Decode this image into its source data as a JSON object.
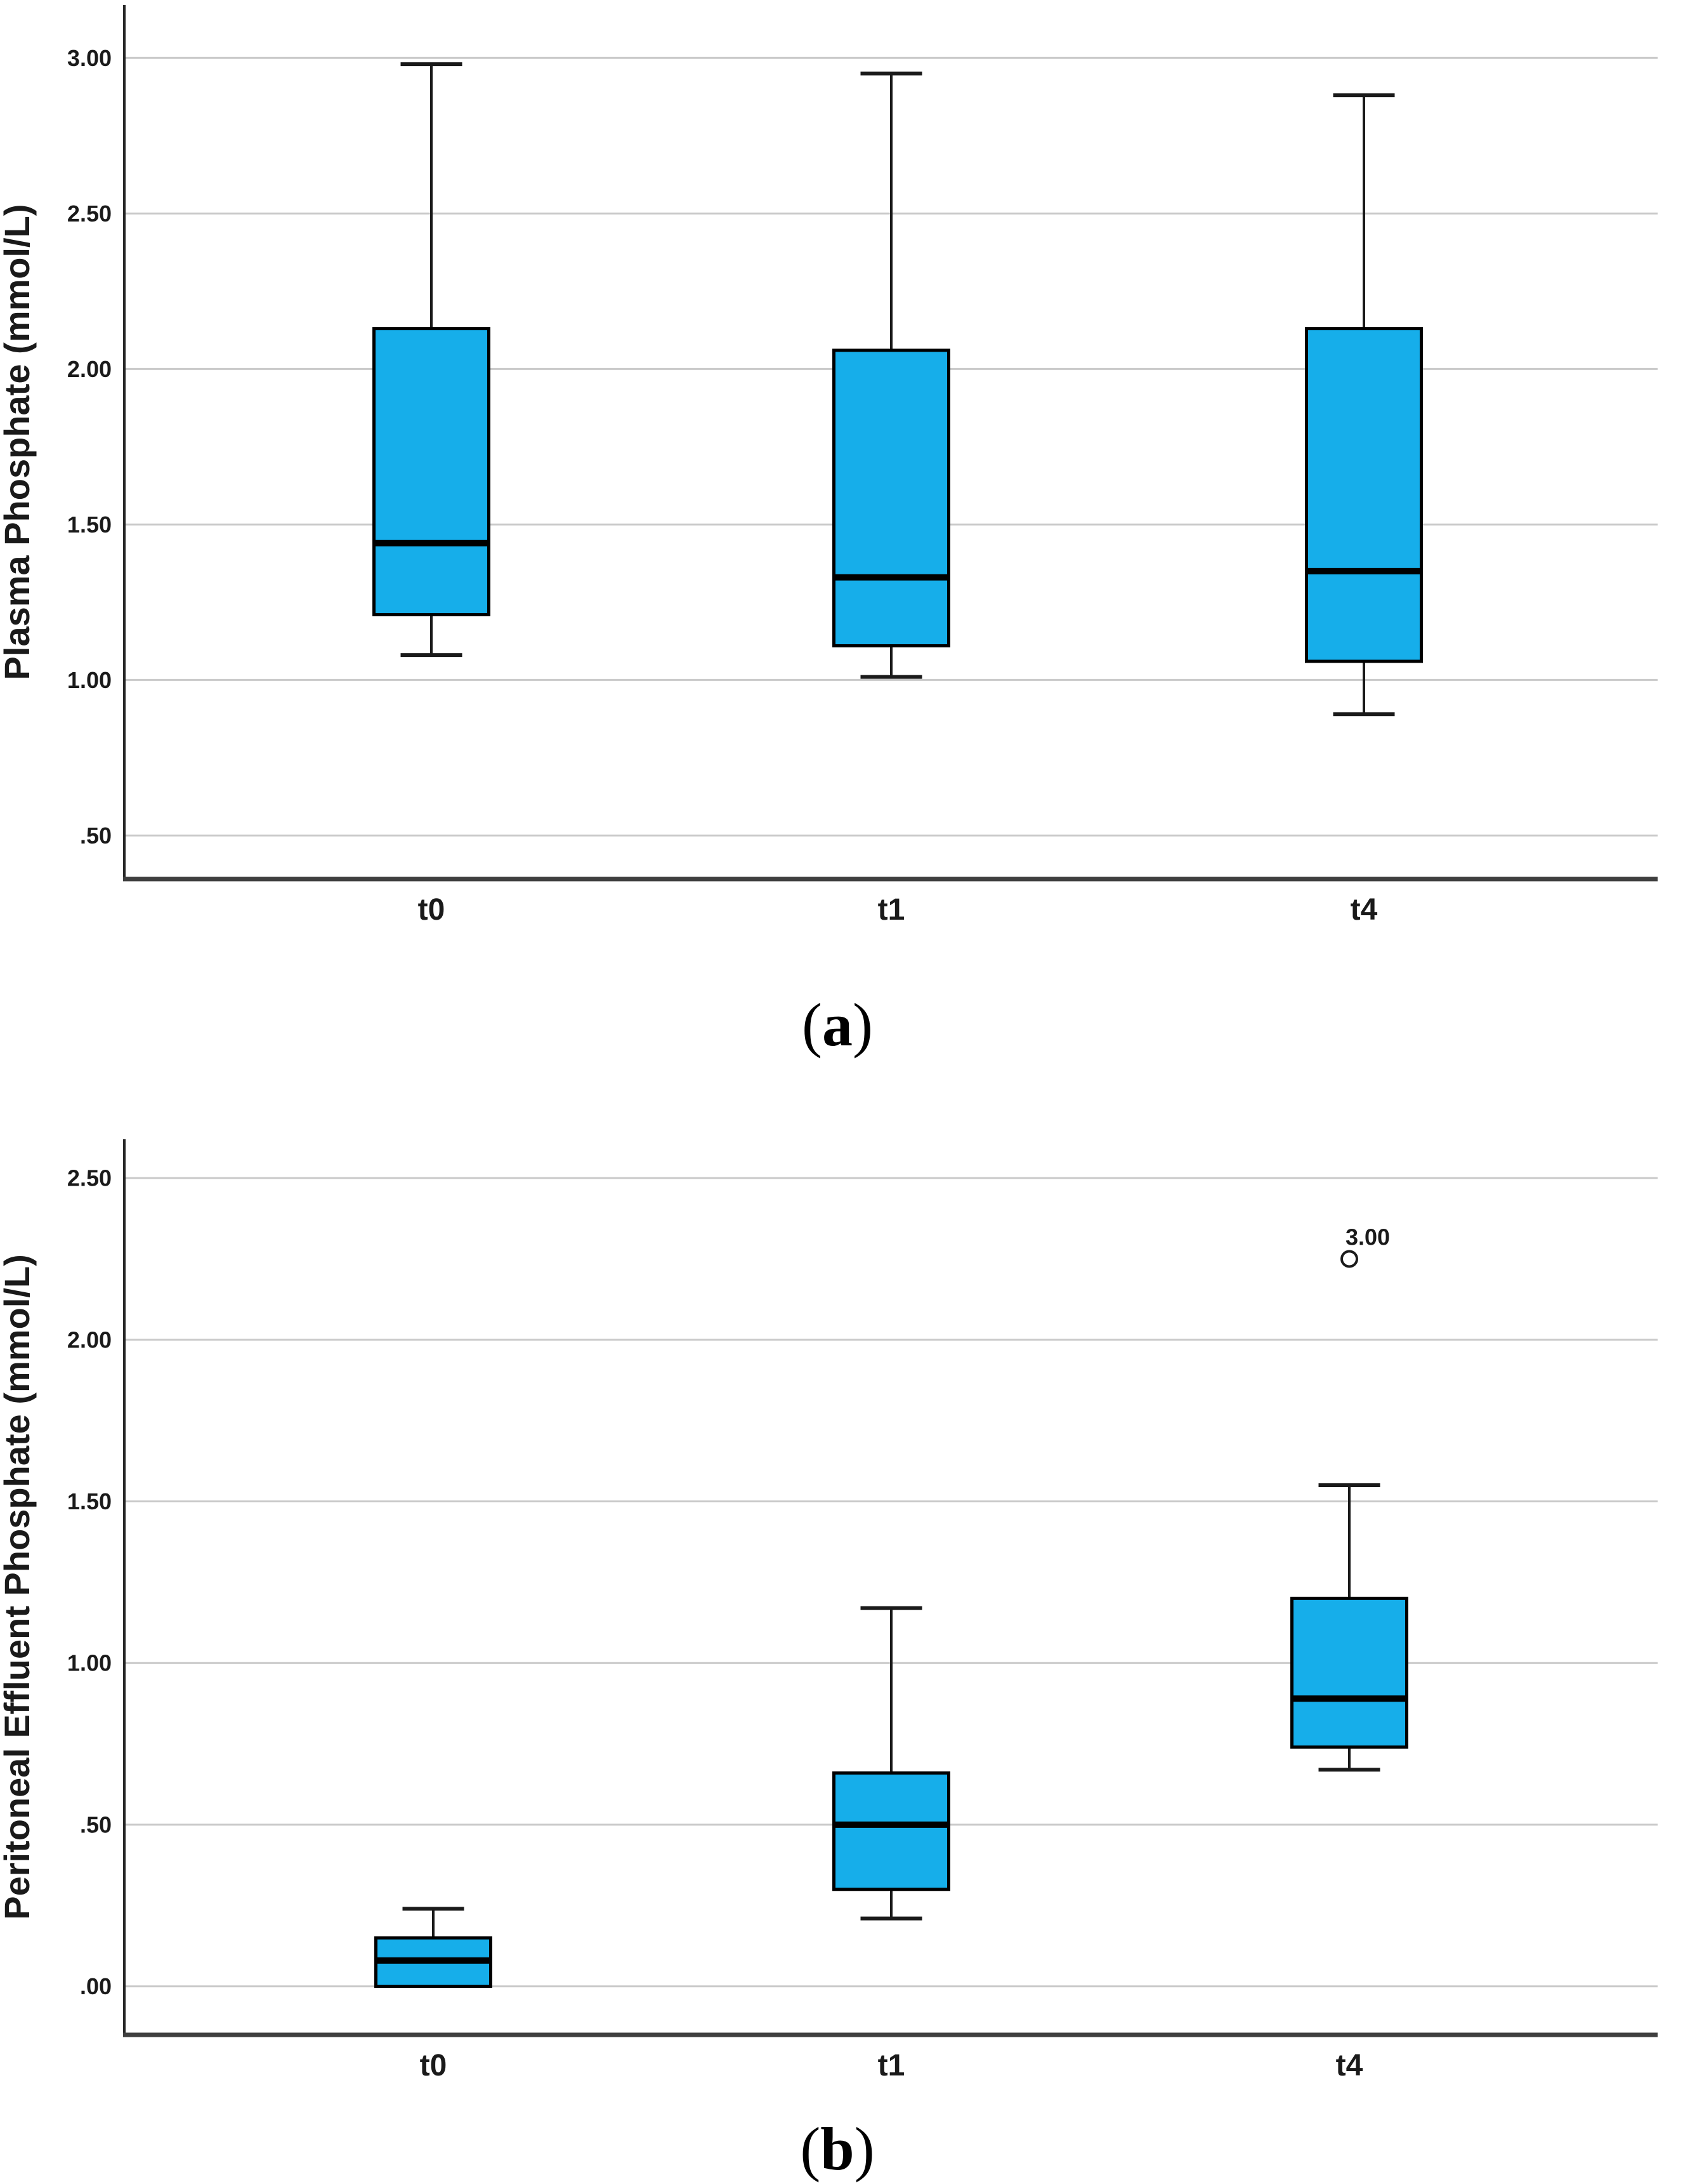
{
  "page": {
    "background": "#ffffff"
  },
  "figure": {
    "panels": [
      {
        "id": "a",
        "caption_open": "(",
        "caption_letter": "a",
        "caption_close": ")"
      },
      {
        "id": "b",
        "caption_open": "(",
        "caption_letter": "b",
        "caption_close": ")"
      }
    ]
  },
  "chart_data": [
    {
      "type": "boxplot",
      "panel": "a",
      "title": "",
      "xlabel": "",
      "ylabel": "Plasma Phosphate (mmol/L)",
      "categories": [
        "t0",
        "t1",
        "t4"
      ],
      "ytick_labels": [
        "3.00",
        "2.50",
        "2.00",
        "1.50",
        "1.00",
        ".50"
      ],
      "ytick_values": [
        3.0,
        2.5,
        2.0,
        1.5,
        1.0,
        0.5
      ],
      "ylim": [
        0.36,
        3.17
      ],
      "grid": true,
      "legend": "none",
      "series": [
        {
          "category": "t0",
          "whisker_low": 1.08,
          "q1": 1.21,
          "median": 1.44,
          "q3": 2.13,
          "whisker_high": 2.98
        },
        {
          "category": "t1",
          "whisker_low": 1.01,
          "q1": 1.11,
          "median": 1.33,
          "q3": 2.06,
          "whisker_high": 2.95
        },
        {
          "category": "t4",
          "whisker_low": 0.89,
          "q1": 1.06,
          "median": 1.35,
          "q3": 2.13,
          "whisker_high": 2.88
        }
      ],
      "outliers": []
    },
    {
      "type": "boxplot",
      "panel": "b",
      "title": "",
      "xlabel": "",
      "ylabel": "Peritoneal Effluent Phosphate (mmol/L)",
      "categories": [
        "t0",
        "t1",
        "t4"
      ],
      "ytick_labels": [
        "2.50",
        "2.00",
        "1.50",
        "1.00",
        ".50",
        ".00"
      ],
      "ytick_values": [
        2.5,
        2.0,
        1.5,
        1.0,
        0.5,
        0.0
      ],
      "ylim": [
        -0.15,
        2.62
      ],
      "grid": true,
      "legend": "none",
      "series": [
        {
          "category": "t0",
          "whisker_low": 0.0,
          "q1": 0.0,
          "median": 0.08,
          "q3": 0.15,
          "whisker_high": 0.24
        },
        {
          "category": "t1",
          "whisker_low": 0.21,
          "q1": 0.3,
          "median": 0.5,
          "q3": 0.66,
          "whisker_high": 1.17
        },
        {
          "category": "t4",
          "whisker_low": 0.67,
          "q1": 0.74,
          "median": 0.89,
          "q3": 1.2,
          "whisker_high": 1.55
        }
      ],
      "outliers": [
        {
          "category": "t4",
          "value": 2.25,
          "label": "3.00"
        }
      ]
    }
  ],
  "colors": {
    "box_fill": "#16aeea",
    "box_stroke": "#000000",
    "median": "#000000",
    "whisker": "#1a1a1a",
    "grid": "#c9c9c9",
    "y_axis": "#262626",
    "x_axis": "#3f3f3f",
    "text": "#1a1a1a",
    "outlier_stroke": "#1a1a1a",
    "outlier_fill": "#ffffff"
  }
}
